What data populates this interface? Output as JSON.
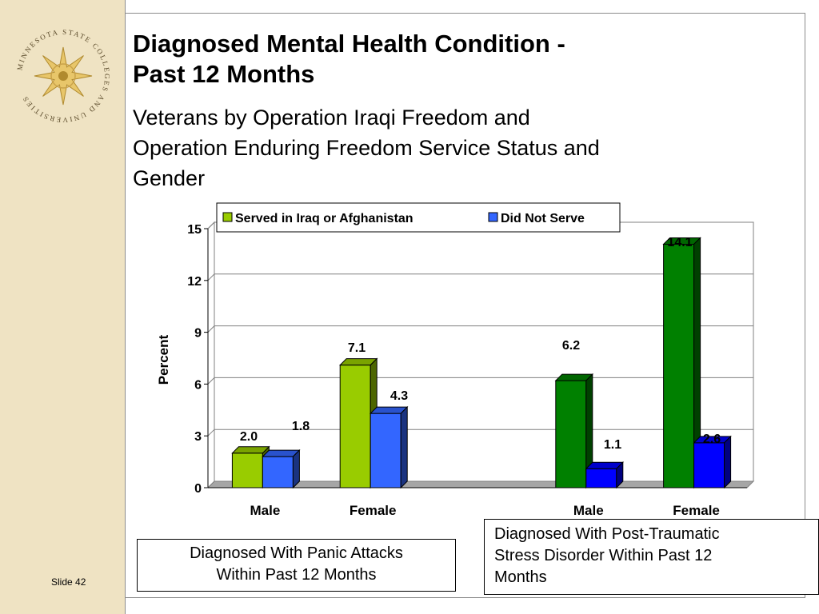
{
  "slide": {
    "title_line1": "Diagnosed Mental Health Condition -",
    "title_line2": "Past 12 Months",
    "subtitle_line1": "Veterans by Operation Iraqi Freedom and",
    "subtitle_line2": "Operation Enduring Freedom Service Status and",
    "subtitle_line3": "Gender",
    "slide_number": "Slide 42",
    "seal_text": "MINNESOTA STATE COLLEGES AND UNIVERSITIES",
    "caption_panic_line1": "Diagnosed With Panic Attacks",
    "caption_panic_line2": "Within Past 12 Months",
    "caption_ptsd_line1": "Diagnosed With Post-Traumatic",
    "caption_ptsd_line2": "Stress Disorder  Within Past 12",
    "caption_ptsd_line3": "Months"
  },
  "chart_data": {
    "type": "bar",
    "ylabel": "Percent",
    "ylim": [
      0,
      15
    ],
    "yticks": [
      0,
      3,
      6,
      9,
      12,
      15
    ],
    "grid": true,
    "legend_position": "top",
    "legend": [
      {
        "name": "Served in Iraq or Afghanistan",
        "color": "#99cc00"
      },
      {
        "name": "Did Not Serve",
        "color": "#3366ff"
      }
    ],
    "groups": [
      {
        "label": "Male",
        "condition": "Panic Attacks",
        "served": 2.0,
        "not_served": 1.8,
        "served_label": "2.0",
        "not_served_label": "1.8",
        "served_color": "#99cc00",
        "not_served_color": "#3366ff"
      },
      {
        "label": "Female",
        "condition": "Panic Attacks",
        "served": 7.1,
        "not_served": 4.3,
        "served_label": "7.1",
        "not_served_label": "4.3",
        "served_color": "#99cc00",
        "not_served_color": "#3366ff"
      },
      {
        "label": "Male",
        "condition": "PTSD",
        "served": 6.2,
        "not_served": 1.1,
        "served_label": "6.2",
        "not_served_label": "1.1",
        "served_color": "#008000",
        "not_served_color": "#0000ff"
      },
      {
        "label": "Female",
        "condition": "PTSD",
        "served": 14.1,
        "not_served": 2.6,
        "served_label": "14.1",
        "not_served_label": "2.6",
        "served_color": "#008000",
        "not_served_color": "#0000ff"
      }
    ]
  }
}
